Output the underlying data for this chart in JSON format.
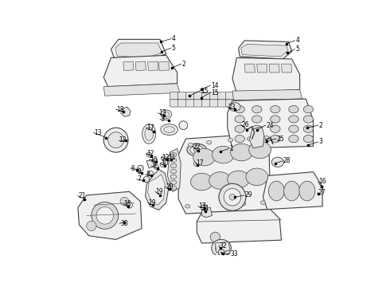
{
  "background_color": "#ffffff",
  "line_color": "#404040",
  "text_color": "#000000",
  "fig_width": 4.9,
  "fig_height": 3.6,
  "dpi": 100,
  "label_fontsize": 5.5,
  "callout_lw": 0.5,
  "part_lw": 0.8,
  "part_fill": "#f0f0f0",
  "part_fill_dark": "#d8d8d8",
  "part_fill_mid": "#e4e4e4"
}
